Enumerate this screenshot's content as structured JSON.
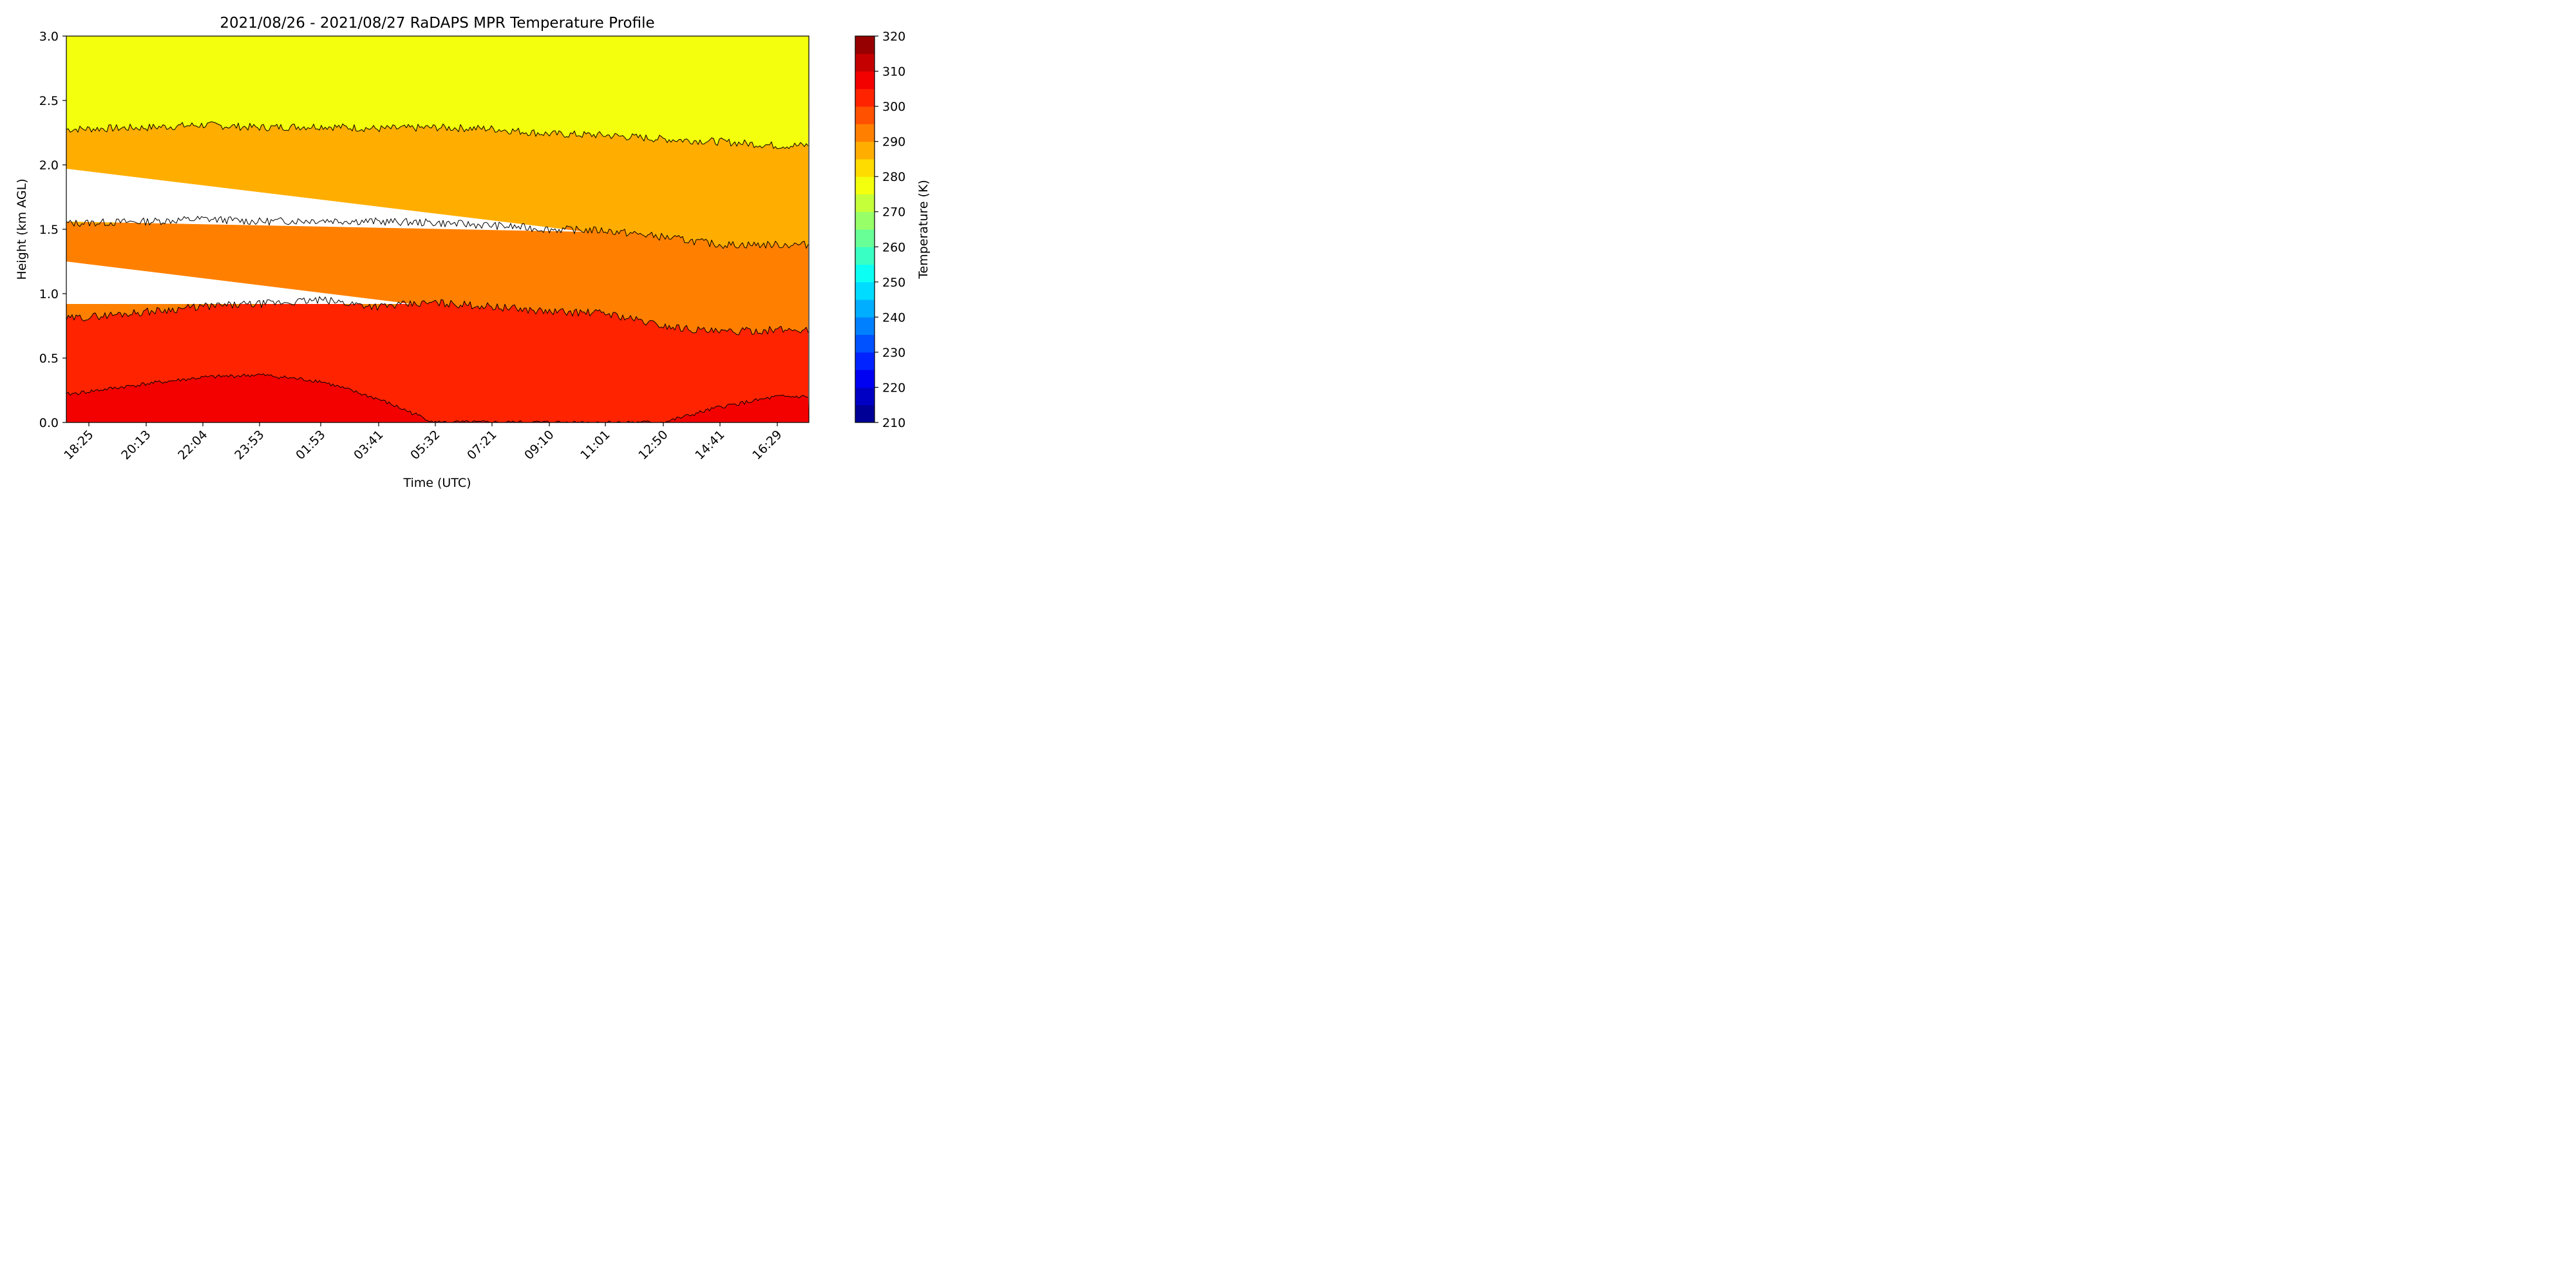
{
  "chart_data": {
    "type": "heatmap",
    "title": "2021/08/26 - 2021/08/27 RaDAPS MPR Temperature Profile",
    "xlabel": "Time (UTC)",
    "ylabel": "Height (km AGL)",
    "colorbar_label": "Temperature (K)",
    "x_tick_labels": [
      "18:25",
      "20:13",
      "22:04",
      "23:53",
      "01:53",
      "03:41",
      "05:32",
      "07:21",
      "09:10",
      "11:01",
      "12:50",
      "14:41",
      "16:29"
    ],
    "y_ticks": [
      0.0,
      0.5,
      1.0,
      1.5,
      2.0,
      2.5,
      3.0
    ],
    "y_tick_labels": [
      "0.0",
      "0.5",
      "1.0",
      "1.5",
      "2.0",
      "2.5",
      "3.0"
    ],
    "ylim": [
      0,
      3
    ],
    "colorbar_ticks": [
      210,
      220,
      230,
      240,
      250,
      260,
      270,
      280,
      290,
      300,
      310,
      320
    ],
    "colorbar_tick_labels": [
      "210",
      "220",
      "230",
      "240",
      "250",
      "260",
      "270",
      "280",
      "290",
      "300",
      "310",
      "320"
    ],
    "colorbar_range": [
      210,
      320
    ],
    "colormap": "jet",
    "contour_interval_filled": 5,
    "contour_line_levels": [
      280,
      290,
      300,
      310
    ],
    "isotherm_heights_km": {
      "times": [
        "18:25",
        "20:13",
        "22:04",
        "23:53",
        "01:53",
        "03:41",
        "05:32",
        "07:21",
        "09:10",
        "11:01",
        "12:50",
        "14:41",
        "16:29"
      ],
      "t280": [
        2.28,
        2.29,
        2.31,
        2.29,
        2.3,
        2.28,
        2.29,
        2.28,
        2.24,
        2.23,
        2.2,
        2.18,
        2.15
      ],
      "t290": [
        1.55,
        1.56,
        1.58,
        1.56,
        1.57,
        1.56,
        1.55,
        1.53,
        1.5,
        1.49,
        1.44,
        1.38,
        1.38
      ],
      "t300": [
        0.82,
        0.86,
        0.9,
        0.92,
        0.95,
        0.9,
        0.93,
        0.9,
        0.86,
        0.85,
        0.75,
        0.7,
        0.72
      ],
      "t310": [
        0.24,
        0.3,
        0.35,
        0.37,
        0.32,
        0.18,
        0.0,
        0.0,
        0.0,
        0.0,
        0.0,
        0.12,
        0.2
      ]
    },
    "grid": false
  }
}
